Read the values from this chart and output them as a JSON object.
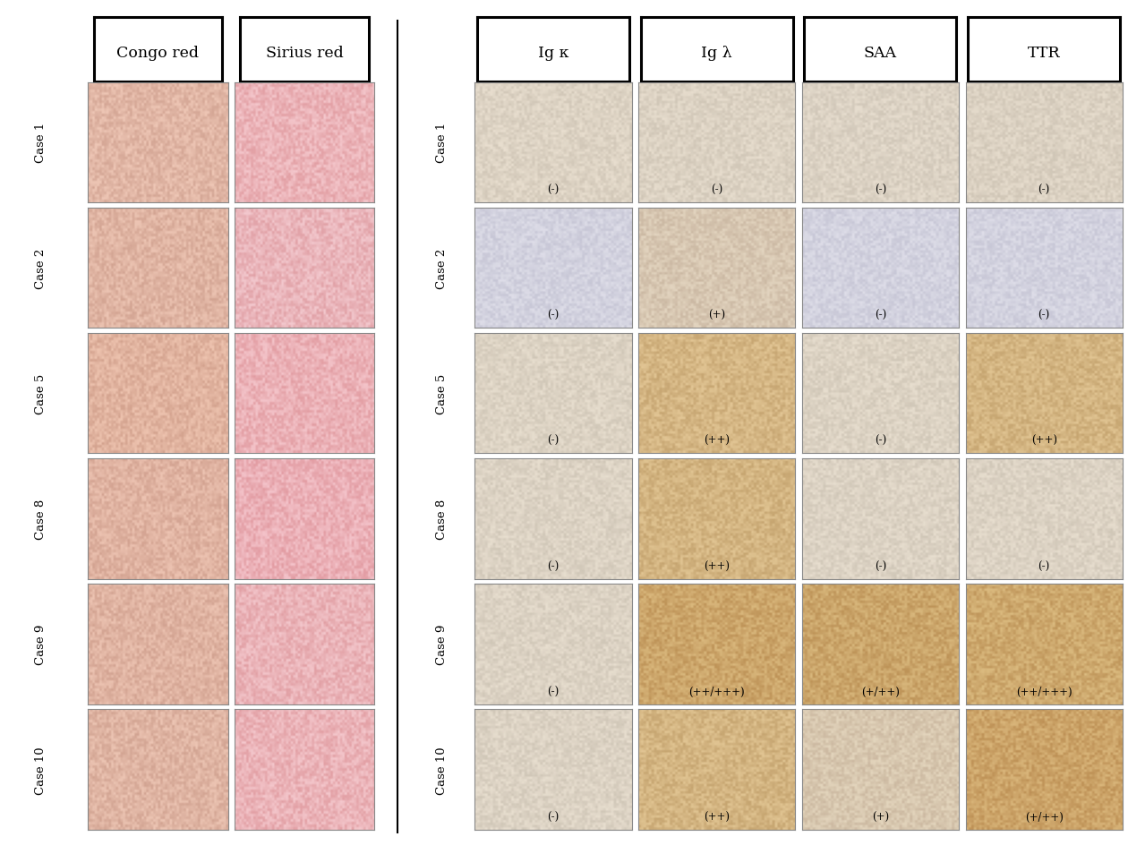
{
  "background_color": "#ffffff",
  "left_panel": {
    "col_headers": [
      "Congo red",
      "Sirius red"
    ],
    "row_labels": [
      "Case 1",
      "Case 2",
      "Case 5",
      "Case 8",
      "Case 9",
      "Case 10"
    ],
    "cell_colors": [
      [
        "#e8d5c8",
        "#f2c8cc"
      ],
      [
        "#dfc8b8",
        "#e8d0d8"
      ],
      [
        "#e5c0a0",
        "#f0b8c0"
      ],
      [
        "#e0c0b0",
        "#f0b0c0"
      ],
      [
        "#ddc0b0",
        "#ecc8cc"
      ],
      [
        "#dcc8b8",
        "#f0c8cc"
      ]
    ]
  },
  "right_panel": {
    "col_headers": [
      "Ig κ",
      "Ig λ",
      "SAA",
      "TTR"
    ],
    "row_labels": [
      "Case 1",
      "Case 2",
      "Case 5",
      "Case 8",
      "Case 9",
      "Case 10"
    ],
    "annotations": [
      [
        "(-)",
        "(-)",
        "(-)",
        "(-)"
      ],
      [
        "(-)",
        "(+)",
        "(-)",
        "(-)"
      ],
      [
        "(-)",
        "(++)",
        "(-)",
        "(++)"
      ],
      [
        "(-)",
        "(++)",
        "(-)",
        "(-)"
      ],
      [
        "(-)",
        "(++/+++)",
        "(+/++)",
        "(++/+++)"
      ],
      [
        "(-)",
        "(++)",
        "(+)",
        "(+/++)"
      ]
    ],
    "cell_colors": [
      [
        "#d8d0c0",
        "#cfc8b8",
        "#ccc8c0",
        "#c8c0b0"
      ],
      [
        "#ccc8d8",
        "#ccc8d8",
        "#ccc8d8",
        "#ccc8d8"
      ],
      [
        "#d0ccbc",
        "#c8a870",
        "#d0ccbc",
        "#c0a060"
      ],
      [
        "#d0ccc0",
        "#c0a060",
        "#d0ccc0",
        "#d0ccc0"
      ],
      [
        "#d0ccc0",
        "#b89050",
        "#b09050",
        "#c8b070"
      ],
      [
        "#d0ccc0",
        "#c0a060",
        "#d0ccc0",
        "#b88040"
      ]
    ]
  }
}
